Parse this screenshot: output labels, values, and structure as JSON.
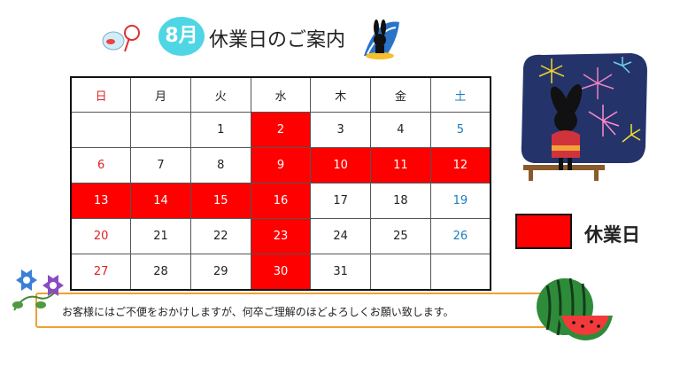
{
  "title": {
    "month": "8月",
    "text": "休業日のご案内"
  },
  "calendar": {
    "weekdays": [
      {
        "label": "日",
        "kind": "sun"
      },
      {
        "label": "月",
        "kind": ""
      },
      {
        "label": "火",
        "kind": ""
      },
      {
        "label": "水",
        "kind": ""
      },
      {
        "label": "木",
        "kind": ""
      },
      {
        "label": "金",
        "kind": ""
      },
      {
        "label": "土",
        "kind": "sat"
      }
    ],
    "weeks": [
      [
        {
          "day": "",
          "closed": false
        },
        {
          "day": "",
          "closed": false
        },
        {
          "day": "1",
          "closed": false
        },
        {
          "day": "2",
          "closed": true
        },
        {
          "day": "3",
          "closed": false
        },
        {
          "day": "4",
          "closed": false
        },
        {
          "day": "5",
          "closed": false
        }
      ],
      [
        {
          "day": "6",
          "closed": false
        },
        {
          "day": "7",
          "closed": false
        },
        {
          "day": "8",
          "closed": false
        },
        {
          "day": "9",
          "closed": true
        },
        {
          "day": "10",
          "closed": true
        },
        {
          "day": "11",
          "closed": true
        },
        {
          "day": "12",
          "closed": true
        }
      ],
      [
        {
          "day": "13",
          "closed": true
        },
        {
          "day": "14",
          "closed": true
        },
        {
          "day": "15",
          "closed": true
        },
        {
          "day": "16",
          "closed": true
        },
        {
          "day": "17",
          "closed": false
        },
        {
          "day": "18",
          "closed": false
        },
        {
          "day": "19",
          "closed": false
        }
      ],
      [
        {
          "day": "20",
          "closed": false
        },
        {
          "day": "21",
          "closed": false
        },
        {
          "day": "22",
          "closed": false
        },
        {
          "day": "23",
          "closed": true
        },
        {
          "day": "24",
          "closed": false
        },
        {
          "day": "25",
          "closed": false
        },
        {
          "day": "26",
          "closed": false
        }
      ],
      [
        {
          "day": "27",
          "closed": false
        },
        {
          "day": "28",
          "closed": false
        },
        {
          "day": "29",
          "closed": false
        },
        {
          "day": "30",
          "closed": true
        },
        {
          "day": "31",
          "closed": false
        },
        {
          "day": "",
          "closed": false
        },
        {
          "day": "",
          "closed": false
        }
      ]
    ]
  },
  "legend": {
    "label": "休業日",
    "color": "#ff0000"
  },
  "notice": {
    "text": "お客様にはご不便をおかけしますが、何卒ご理解のほどよろしくお願い致します。"
  },
  "colors": {
    "accent_cyan": "#4fd6e4",
    "closed": "#ff0000",
    "sunday": "#e02020",
    "saturday": "#1d7bc0",
    "banner_border": "#f0a030"
  },
  "icons": [
    "goldfish-bowl-icon",
    "surfing-rabbit-icon",
    "fireworks-rabbit-illustration",
    "morning-glory-icon",
    "watermelon-icon"
  ]
}
